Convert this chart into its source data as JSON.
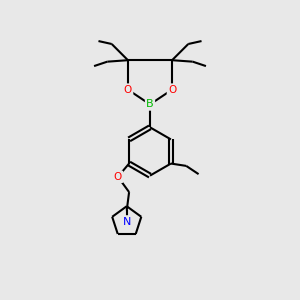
{
  "background_color": "#e8e8e8",
  "bond_color": "#000000",
  "bond_width": 1.5,
  "atom_colors": {
    "B": "#00bb00",
    "O": "#ff0000",
    "N": "#0000ff",
    "C": "#000000"
  }
}
